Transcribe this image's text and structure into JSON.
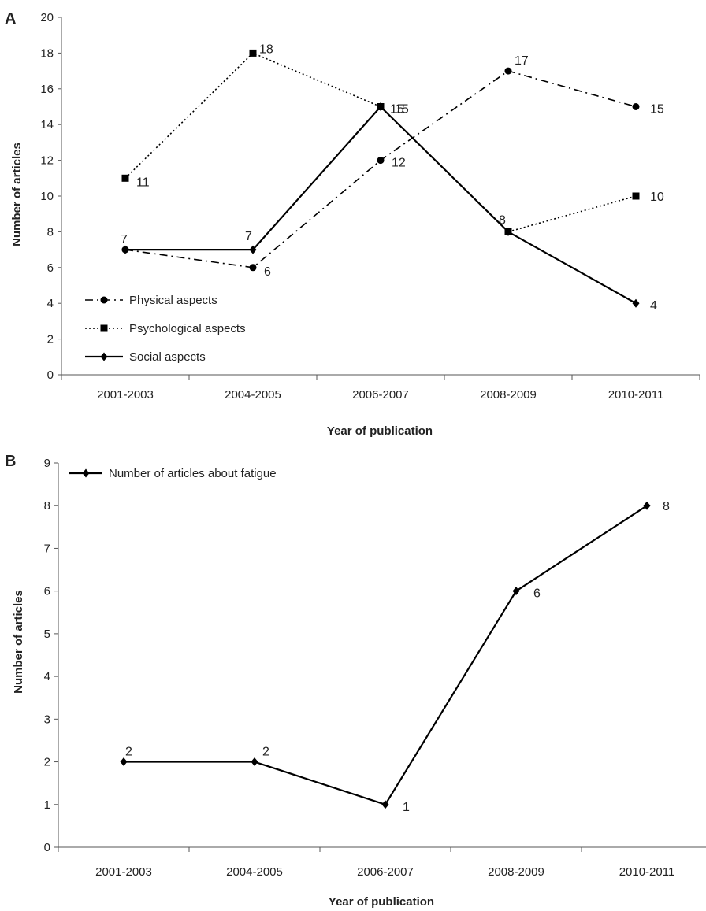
{
  "chart_data": [
    {
      "panel": "A",
      "type": "line",
      "categories": [
        "2001-2003",
        "2004-2005",
        "2006-2007",
        "2008-2009",
        "2010-2011"
      ],
      "series": [
        {
          "name": "Physical aspects",
          "values": [
            7,
            6,
            12,
            17,
            15
          ],
          "data_labels": [
            "",
            "6",
            "12",
            "17",
            "15"
          ],
          "marker": "circle",
          "dash": "dashdot",
          "color": "#000000"
        },
        {
          "name": "Psychological aspects",
          "values": [
            11,
            18,
            15,
            8,
            10
          ],
          "data_labels": [
            "11",
            "18",
            "15",
            "",
            "10"
          ],
          "marker": "square",
          "dash": "dotted",
          "color": "#000000"
        },
        {
          "name": "Social aspects",
          "values": [
            7,
            7,
            15,
            8,
            4
          ],
          "data_labels": [
            "7",
            "7",
            "15",
            "8",
            "4"
          ],
          "marker": "diamond",
          "dash": "solid",
          "color": "#000000"
        }
      ],
      "xlabel": "Year of publication",
      "ylabel": "Number of articles",
      "ylim": [
        0,
        20
      ],
      "yticks": [
        "0",
        "2",
        "4",
        "6",
        "8",
        "10",
        "12",
        "14",
        "16",
        "18",
        "20"
      ],
      "grid": false,
      "legend_position": "bottom-left"
    },
    {
      "panel": "B",
      "type": "line",
      "categories": [
        "2001-2003",
        "2004-2005",
        "2006-2007",
        "2008-2009",
        "2010-2011"
      ],
      "series": [
        {
          "name": "Number of articles about fatigue",
          "values": [
            2,
            2,
            1,
            6,
            8
          ],
          "data_labels": [
            "2",
            "2",
            "1",
            "6",
            "8"
          ],
          "marker": "diamond",
          "dash": "solid",
          "color": "#000000"
        }
      ],
      "xlabel": "Year of publication",
      "ylabel": "Number of articles",
      "ylim": [
        0,
        9
      ],
      "yticks": [
        "0",
        "1",
        "2",
        "3",
        "4",
        "5",
        "6",
        "7",
        "8",
        "9"
      ],
      "grid": false,
      "legend_position": "top-left"
    }
  ]
}
